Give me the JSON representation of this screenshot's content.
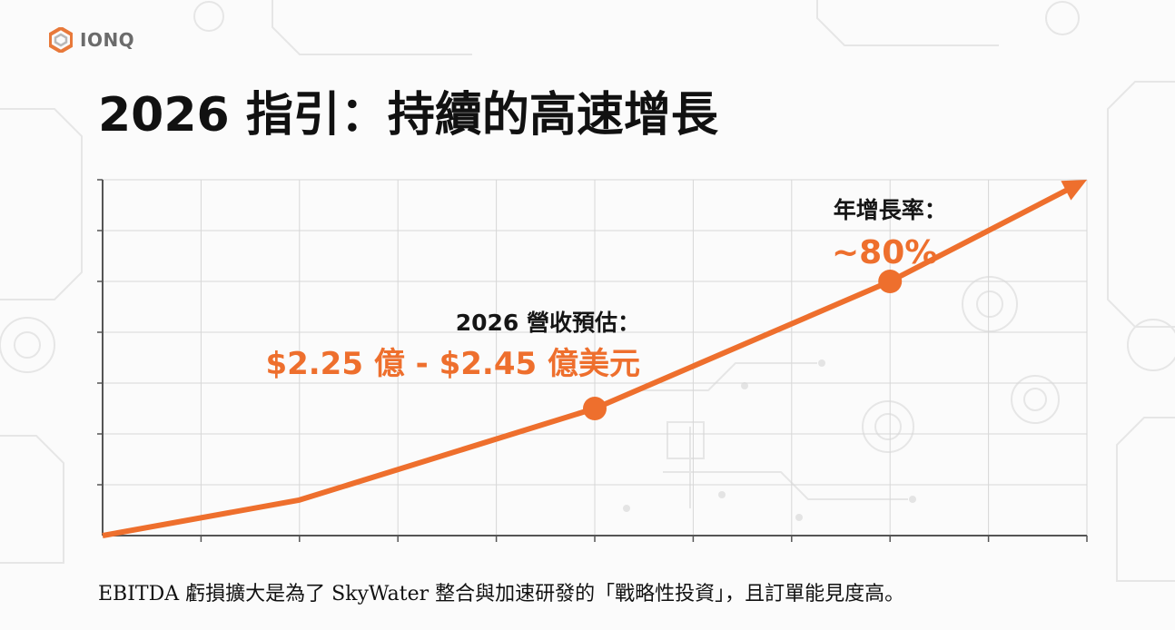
{
  "brand": {
    "name": "IONQ",
    "logo_icon": "ionq-logo-icon",
    "color": "#e8793a"
  },
  "title": "2026 指引：持續的高速增長",
  "colors": {
    "accent": "#ee6f2d",
    "text": "#111111",
    "grid": "#d7d7d7",
    "deco": "#e8e8e8"
  },
  "chart_data": {
    "type": "line",
    "title": "",
    "xlabel": "",
    "ylabel": "",
    "grid": true,
    "trend_arrow": true,
    "x": [
      0,
      2,
      5,
      8,
      10
    ],
    "values": [
      0,
      7,
      25,
      50,
      70
    ],
    "xlim": [
      0,
      10
    ],
    "ylim": [
      0,
      70
    ],
    "highlighted_points": [
      {
        "x": 5,
        "y": 25,
        "label_line1": "2026 營收預估：",
        "label_line2": "$2.25 億 - $2.45 億美元"
      },
      {
        "x": 8,
        "y": 50,
        "label_line1": "年增長率：",
        "label_line2": "~80%"
      }
    ]
  },
  "footnote": "EBITDA 虧損擴大是為了 SkyWater 整合與加速研發的「戰略性投資」，且訂單能見度高。"
}
